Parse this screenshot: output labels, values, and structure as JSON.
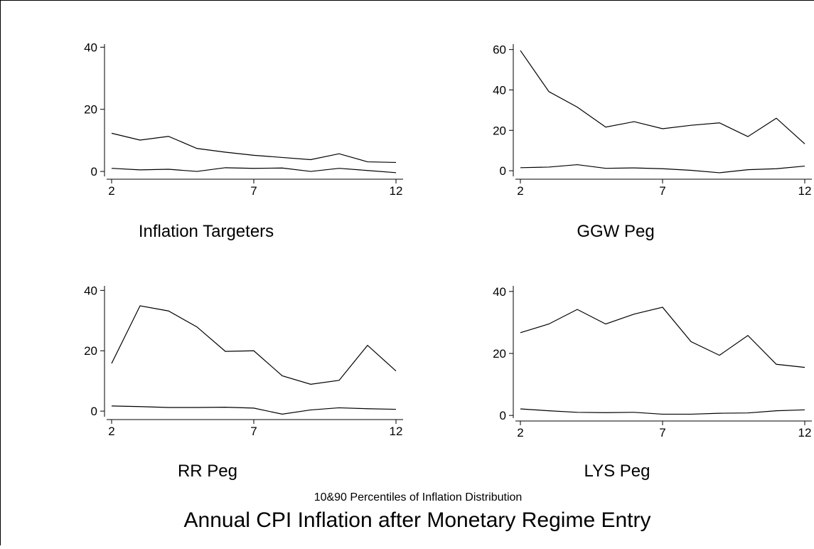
{
  "title": "Annual CPI Inflation after Monetary Regime Entry",
  "subtitle": "10&90 Percentiles of Inflation Distribution",
  "chart_data": [
    {
      "type": "line",
      "title": "Inflation Targeters",
      "x": [
        2,
        3,
        4,
        5,
        6,
        7,
        8,
        9,
        10,
        11,
        12
      ],
      "series": [
        {
          "color": "#000000",
          "values": [
            12.3,
            10.1,
            11.3,
            7.4,
            6.2,
            5.2,
            4.5,
            3.8,
            5.7,
            3.1,
            2.9
          ]
        },
        {
          "color": "#000000",
          "values": [
            1.0,
            0.5,
            0.7,
            0.0,
            1.2,
            1.0,
            1.1,
            0.0,
            1.0,
            0.3,
            -0.4
          ]
        }
      ],
      "xlim": [
        1.75,
        12.25
      ],
      "xticks": [
        2,
        7,
        12
      ],
      "ylim": [
        -2.5,
        41
      ],
      "yticks": [
        0,
        20,
        40
      ]
    },
    {
      "type": "line",
      "title": "GGW Peg",
      "x": [
        2,
        3,
        4,
        5,
        6,
        7,
        8,
        9,
        10,
        11,
        12
      ],
      "series": [
        {
          "color": "#000000",
          "values": [
            59.5,
            39.2,
            31.5,
            21.6,
            24.3,
            20.8,
            22.5,
            23.7,
            16.9,
            26.0,
            13.3
          ]
        },
        {
          "color": "#000000",
          "values": [
            1.5,
            1.8,
            3.0,
            1.2,
            1.4,
            1.0,
            0.2,
            -1.0,
            0.5,
            1.0,
            2.3
          ]
        }
      ],
      "xlim": [
        1.75,
        12.25
      ],
      "xticks": [
        2,
        7,
        12
      ],
      "ylim": [
        -4.2,
        62.7
      ],
      "yticks": [
        0,
        20,
        40,
        60
      ]
    },
    {
      "type": "line",
      "title": "RR Peg",
      "x": [
        2,
        3,
        4,
        5,
        6,
        7,
        8,
        9,
        10,
        11,
        12
      ],
      "series": [
        {
          "color": "#000000",
          "values": [
            15.8,
            34.9,
            33.2,
            27.9,
            19.8,
            20.0,
            11.7,
            8.9,
            10.2,
            21.8,
            13.3
          ]
        },
        {
          "color": "#000000",
          "values": [
            1.7,
            1.5,
            1.2,
            1.2,
            1.3,
            1.0,
            -1.0,
            0.4,
            1.1,
            0.8,
            0.6
          ]
        }
      ],
      "xlim": [
        1.75,
        12.25
      ],
      "xticks": [
        2,
        7,
        12
      ],
      "ylim": [
        -2.8,
        41.5
      ],
      "yticks": [
        0,
        20,
        40
      ]
    },
    {
      "type": "line",
      "title": "LYS Peg",
      "x": [
        2,
        3,
        4,
        5,
        6,
        7,
        8,
        9,
        10,
        11,
        12
      ],
      "series": [
        {
          "color": "#000000",
          "values": [
            26.7,
            29.5,
            34.2,
            29.5,
            32.7,
            34.9,
            23.8,
            19.4,
            25.8,
            16.5,
            15.5
          ]
        },
        {
          "color": "#000000",
          "values": [
            2.1,
            1.5,
            1.0,
            0.9,
            1.0,
            0.4,
            0.4,
            0.7,
            0.8,
            1.5,
            1.8
          ]
        }
      ],
      "xlim": [
        1.75,
        12.25
      ],
      "xticks": [
        2,
        7,
        12
      ],
      "ylim": [
        -1.8,
        41.8
      ],
      "yticks": [
        0,
        20,
        40
      ]
    }
  ]
}
